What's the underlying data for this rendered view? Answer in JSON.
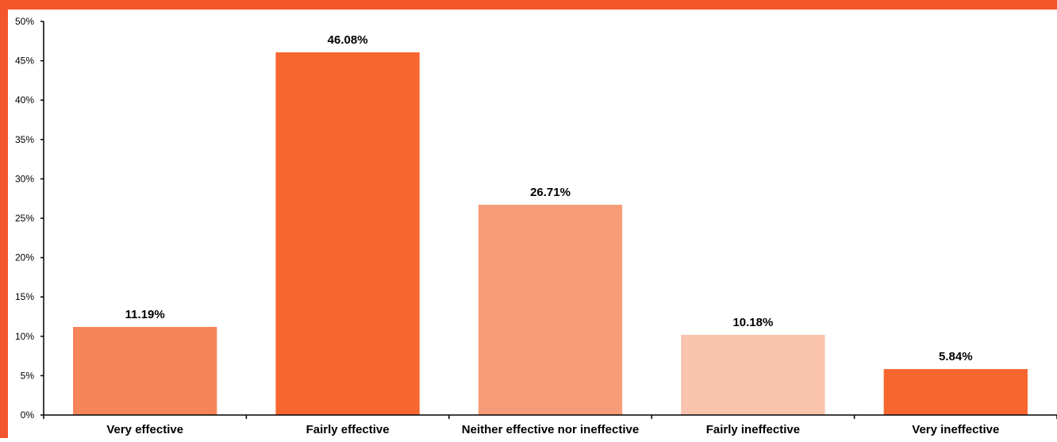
{
  "chart_data": {
    "type": "bar",
    "title": "",
    "xlabel": "",
    "ylabel": "",
    "categories": [
      "Very effective",
      "Fairly effective",
      "Neither effective nor ineffective",
      "Fairly ineffective",
      "Very ineffective"
    ],
    "values": [
      11.19,
      46.08,
      26.71,
      10.18,
      5.84
    ],
    "data_labels": [
      "11.19%",
      "46.08%",
      "26.71%",
      "10.18%",
      "5.84%"
    ],
    "bar_colors": [
      "#f7855a",
      "#f6672f",
      "#f79c79",
      "#f9c3ad",
      "#f6672f"
    ],
    "ylim": [
      0,
      50
    ],
    "yticks": [
      0,
      5,
      10,
      15,
      20,
      25,
      30,
      35,
      40,
      45,
      50
    ],
    "ytick_labels": [
      "0%",
      "5%",
      "10%",
      "15%",
      "20%",
      "25%",
      "30%",
      "35%",
      "40%",
      "45%",
      "50%"
    ],
    "grid": false,
    "legend": "none"
  },
  "theme": {
    "border_color": "#f4562b",
    "axis_color": "#000000",
    "text_color": "#000000"
  }
}
